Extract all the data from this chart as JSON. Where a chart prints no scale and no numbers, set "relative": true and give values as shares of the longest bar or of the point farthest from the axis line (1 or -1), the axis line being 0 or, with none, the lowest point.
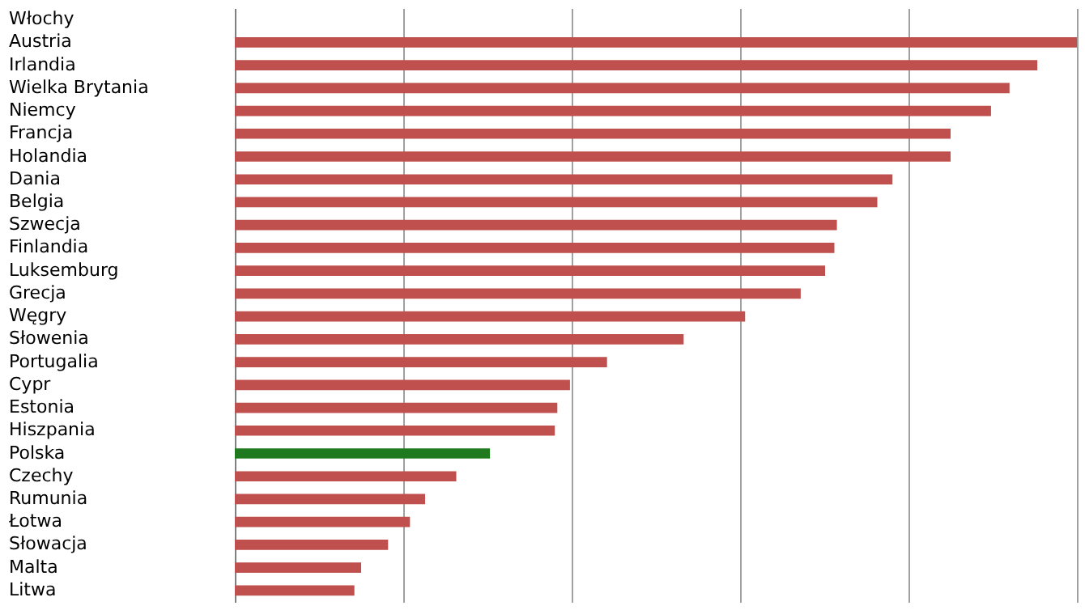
{
  "chart_data": {
    "type": "bar",
    "orientation": "horizontal",
    "relative": true,
    "grid": "x",
    "categories": [
      "Włochy",
      "Austria",
      "Irlandia",
      "Wielka Brytania",
      "Niemcy",
      "Francja",
      "Holandia",
      "Dania",
      "Belgia",
      "Szwecja",
      "Finlandia",
      "Luksemburg",
      "Grecja",
      "Węgry",
      "Słowenia",
      "Portugalia",
      "Cypr",
      "Estonia",
      "Hiszpania",
      "Polska",
      "Czechy",
      "Rumunia",
      "Łotwa",
      "Słowacja",
      "Malta",
      "Litwa"
    ],
    "values": [
      null,
      1,
      0.953,
      0.92,
      0.898,
      0.85,
      0.85,
      0.781,
      0.763,
      0.715,
      0.712,
      0.701,
      0.672,
      0.606,
      0.533,
      0.442,
      0.398,
      0.383,
      0.38,
      0.303,
      0.263,
      0.226,
      0.208,
      0.182,
      0.15,
      0.142
    ],
    "colors": [
      "#c0504d",
      "#c0504d",
      "#c0504d",
      "#c0504d",
      "#c0504d",
      "#c0504d",
      "#c0504d",
      "#c0504d",
      "#c0504d",
      "#c0504d",
      "#c0504d",
      "#c0504d",
      "#c0504d",
      "#c0504d",
      "#c0504d",
      "#c0504d",
      "#c0504d",
      "#c0504d",
      "#c0504d",
      "#1f7a1f",
      "#c0504d",
      "#c0504d",
      "#c0504d",
      "#c0504d",
      "#c0504d",
      "#c0504d"
    ]
  }
}
